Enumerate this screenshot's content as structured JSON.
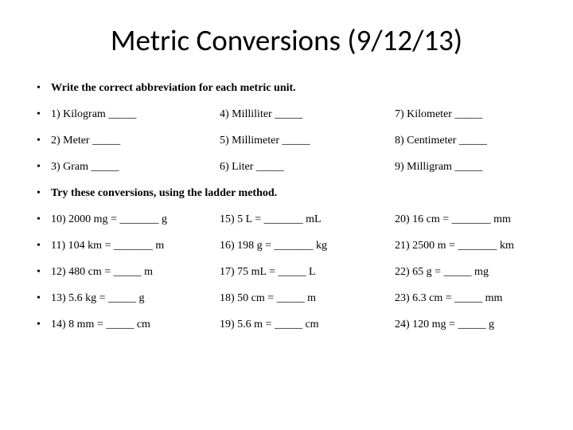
{
  "title": "Metric Conversions (9/12/13)",
  "instruction1": "Write the correct abbreviation for each metric unit.",
  "abbrev": {
    "r1c1": "1) Kilogram _____",
    "r1c2": "4) Milliliter _____",
    "r1c3": "7) Kilometer _____",
    "r2c1": "2) Meter _____",
    "r2c2": "5) Millimeter _____",
    "r2c3": "8) Centimeter _____",
    "r3c1": "3) Gram _____",
    "r3c2": "6) Liter _____",
    "r3c3": "9) Milligram _____"
  },
  "instruction2": "Try these conversions, using the ladder method.",
  "conv": {
    "r1c1": "10) 2000 mg = _______ g",
    "r1c2": "15) 5 L = _______ mL",
    "r1c3": "20) 16 cm = _______ mm",
    "r2c1": "11) 104 km = _______ m",
    "r2c2": "16) 198 g = _______ kg",
    "r2c3": "21) 2500 m = _______ km",
    "r3c1": "12) 480 cm = _____ m",
    "r3c2": "17) 75 mL = _____ L",
    "r3c3": "22) 65 g = _____ mg",
    "r4c1": "13) 5.6 kg = _____ g",
    "r4c2": "18) 50 cm = _____ m",
    "r4c3": "23) 6.3 cm = _____ mm",
    "r5c1": "14) 8 mm = _____ cm",
    "r5c2": "19) 5.6 m = _____ cm",
    "r5c3": "24) 120 mg = _____ g"
  }
}
